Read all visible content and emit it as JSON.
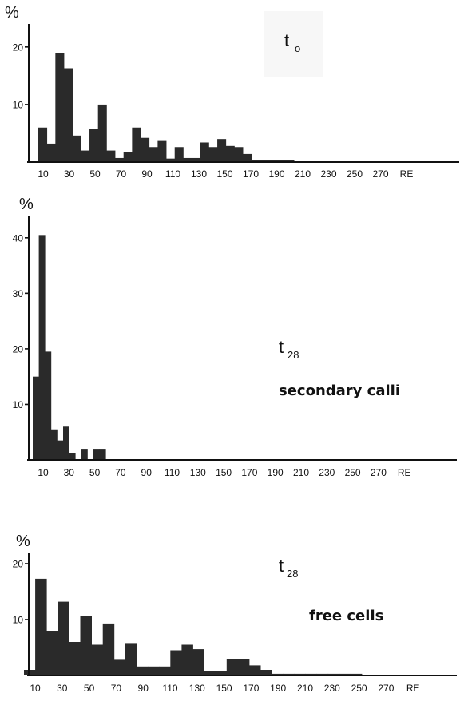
{
  "chart_data": [
    {
      "type": "bar",
      "ylabel": "%",
      "ylim": [
        0,
        24
      ],
      "yticks": [
        10,
        20
      ],
      "xlabels": [
        "10",
        "30",
        "50",
        "70",
        "90",
        "110",
        "130",
        "150",
        "170",
        "190",
        "210",
        "230",
        "250",
        "270",
        "RE"
      ],
      "annotation": {
        "main": "t",
        "sub": "o",
        "text": ""
      },
      "values": [
        6,
        3.2,
        19,
        16.3,
        4.6,
        2,
        5.7,
        10,
        2,
        0.7,
        1.8,
        6,
        4.2,
        2.6,
        3.8,
        0.6,
        2.6,
        0.7,
        0.7,
        3.4,
        2.6,
        4,
        2.8,
        2.6,
        1.4,
        0.3,
        0.3,
        0.3,
        0.3,
        0.3
      ]
    },
    {
      "type": "bar",
      "ylabel": "%",
      "ylim": [
        0,
        44
      ],
      "yticks": [
        10,
        20,
        30,
        40
      ],
      "xlabels": [
        "10",
        "30",
        "50",
        "70",
        "90",
        "110",
        "130",
        "150",
        "170",
        "190",
        "210",
        "230",
        "250",
        "270",
        "RE"
      ],
      "annotation": {
        "main": "t",
        "sub": "28",
        "text": "secondary calli"
      },
      "values": [
        15,
        40.5,
        19.5,
        5.5,
        3.5,
        6,
        1.2,
        0,
        2,
        0,
        2,
        2
      ]
    },
    {
      "type": "bar",
      "ylabel": "%",
      "ylim": [
        0,
        22
      ],
      "yticks": [
        10,
        20
      ],
      "xlabels": [
        "10",
        "30",
        "50",
        "70",
        "90",
        "110",
        "130",
        "150",
        "170",
        "190",
        "210",
        "230",
        "250",
        "270",
        "RE"
      ],
      "annotation": {
        "main": "t",
        "sub": "28",
        "text": "free cells"
      },
      "values": [
        1,
        17.3,
        8,
        13.2,
        6,
        10.7,
        5.5,
        9.3,
        2.8,
        5.8,
        1.6,
        1.6,
        1.6,
        4.5,
        5.5,
        4.7,
        0.8,
        0.8,
        3,
        3,
        1.8,
        1,
        0.3,
        0.3,
        0.3,
        0.3,
        0.3,
        0.3,
        0.3,
        0.3
      ]
    }
  ]
}
